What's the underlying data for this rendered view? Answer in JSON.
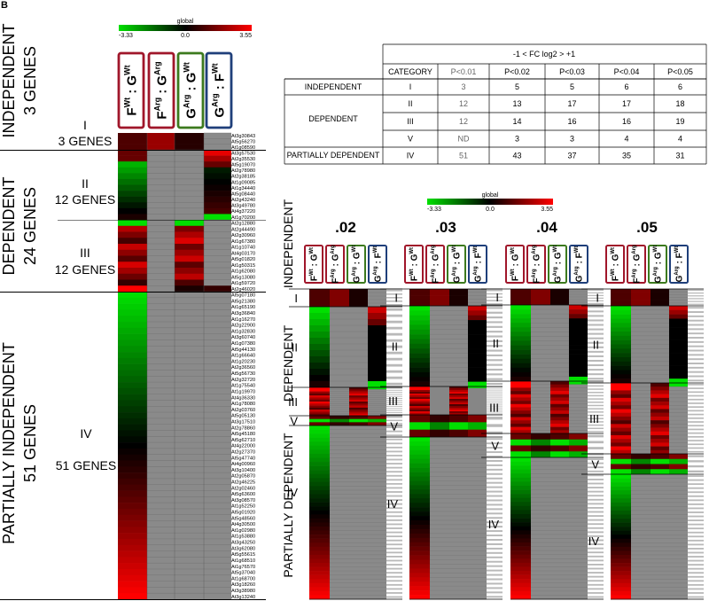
{
  "panel_letter": "B",
  "colors": {
    "low": "#00e000",
    "mid": "#000000",
    "high": "#ff0000",
    "na": "#8a8a8a"
  },
  "scale": {
    "title": "global",
    "min": "-3.33",
    "mid": "0.0",
    "max": "3.55"
  },
  "comparisons": [
    {
      "top": "Wt",
      "bottom": "Wt",
      "frame": "#a0162a"
    },
    {
      "top": "Arg",
      "bottom": "Arg",
      "frame": "#a0162a"
    },
    {
      "top": "Arg",
      "bottom": "Wt",
      "frame": "#3c7a1e"
    },
    {
      "top": "Arg",
      "bottom": "Wt",
      "frame": "#1f3f7a"
    }
  ],
  "comparison_letters": [
    [
      "F",
      "G"
    ],
    [
      "F",
      "G"
    ],
    [
      "G",
      "G"
    ],
    [
      "G",
      "F"
    ]
  ],
  "main_side": {
    "independent": [
      "INDEPENDENT",
      "3 GENES"
    ],
    "dependent": [
      "DEPENDENT",
      "24 GENES"
    ],
    "partial": [
      "PARTIALLY INDEPENDENT",
      "51 GENES"
    ]
  },
  "main_groups": [
    {
      "roman": "I",
      "count": "3 GENES"
    },
    {
      "roman": "II",
      "count": "12 GENES"
    },
    {
      "roman": "III",
      "count": "12 GENES"
    },
    {
      "roman": "IV",
      "count": "51 GENES"
    }
  ],
  "gene_ids": {
    "I": [
      "At3g30843",
      "At5g56270",
      "At1g08590"
    ],
    "II": [
      "At3g57530",
      "At2g35530",
      "At5g19070",
      "At2g78980",
      "At2g38185",
      "At1g09085",
      "At1g34440",
      "At5g08440",
      "At2g43240",
      "At3g49780",
      "At4g37220",
      "At1g70200"
    ],
    "III": [
      "At2g12880",
      "At2g44490",
      "At2g30960",
      "At1g67380",
      "At1g10740",
      "At4g03170",
      "At5g01820",
      "At1g50315",
      "At1g62080",
      "At5g13080",
      "At1g59720",
      "At2g46020"
    ],
    "IV": [
      "At5g07180",
      "At5g21380",
      "At1g65190",
      "At3g36840",
      "At1g16270",
      "At2g22900",
      "At1g32830",
      "At3g60740",
      "At1g07380",
      "At5g44130",
      "At1g66640",
      "At1g20230",
      "At2g36560",
      "At5g56730",
      "At2g32720",
      "At1g75540",
      "At1g19970",
      "At4g36330",
      "At1g78080",
      "At2g03760",
      "At5g05130",
      "At3g17510",
      "At2g78860",
      "At5g45180",
      "At5g62710",
      "At4g22000",
      "At2g27370",
      "At5g47740",
      "At4g00960",
      "At3g10400",
      "At2g05870",
      "At2g46225",
      "At2g02460",
      "At5g63600",
      "At3g08570",
      "At1g52250",
      "At5g01920",
      "At5g48560",
      "At4g30500",
      "At1g02980",
      "At1g53880",
      "At3g43250",
      "At3g62080",
      "At5g55615",
      "At1g68510",
      "At1g76570",
      "At5g37040",
      "At1g68700",
      "At3g18260",
      "At3g38980",
      "At3g13240"
    ]
  },
  "table": {
    "super": "-1 < FC log2 > +1",
    "header": [
      "CATEGORY",
      "P<0.01",
      "P<0.02",
      "P<0.03",
      "P<0.04",
      "P<0.05"
    ],
    "rows": [
      {
        "name": "INDEPENDENT",
        "cat": "I",
        "vals": [
          "3",
          "5",
          "5",
          "6",
          "6"
        ]
      },
      {
        "name": "DEPENDENT",
        "cat": "II",
        "vals": [
          "12",
          "13",
          "17",
          "17",
          "18"
        ]
      },
      {
        "name": "",
        "cat": "III",
        "vals": [
          "12",
          "14",
          "16",
          "16",
          "19"
        ]
      },
      {
        "name": "",
        "cat": "V",
        "vals": [
          "ND",
          "3",
          "3",
          "4",
          "4"
        ]
      },
      {
        "name": "PARTIALLY DEPENDENT",
        "cat": "IV",
        "vals": [
          "51",
          "43",
          "37",
          "35",
          "31"
        ]
      }
    ]
  },
  "small_panels": [
    {
      "title": ".02",
      "counts": [
        5,
        13,
        14,
        3,
        43
      ]
    },
    {
      "title": ".03",
      "counts": [
        5,
        17,
        16,
        3,
        37
      ]
    },
    {
      "title": ".04",
      "counts": [
        6,
        17,
        16,
        4,
        35
      ]
    },
    {
      "title": ".05",
      "counts": [
        6,
        18,
        19,
        4,
        31
      ]
    }
  ],
  "small_side": {
    "independent": "INDEPENDENT",
    "dependent": "DEPENDENT",
    "partial": "PARTIALLY DEPENDENT"
  },
  "small_groups": [
    "I",
    "II",
    "III",
    "V",
    "IV"
  ]
}
